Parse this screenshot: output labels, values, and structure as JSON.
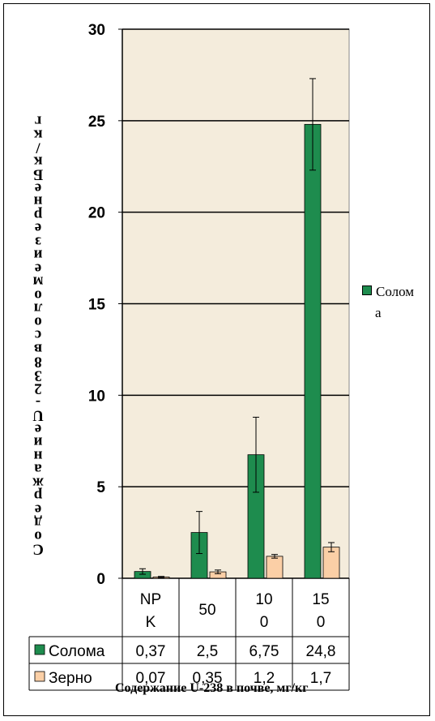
{
  "chart_data": {
    "type": "bar",
    "ylabel": "Содержание U-238 в зерне, мк/кг",
    "ylabel_letters": [
      "С",
      "о",
      "д",
      "е",
      "р",
      "ж",
      "а",
      "н",
      "и",
      "е",
      "U",
      "-",
      "2",
      "3",
      "8",
      "в",
      "с",
      "о",
      "л",
      "о",
      "м",
      "е",
      "и",
      "з",
      "е",
      "р",
      "н",
      "е",
      "Б",
      "к",
      "/",
      "к",
      "г"
    ],
    "xlabel": "Содержание U-238 в почве, мг/кг",
    "ylim": [
      0,
      30
    ],
    "yticks": [
      "0",
      "5",
      "10",
      "15",
      "20",
      "25",
      "30"
    ],
    "grid": true,
    "legend_position": "right",
    "categories": [
      {
        "line1": "NP",
        "line2": "K"
      },
      {
        "line1": "50",
        "line2": ""
      },
      {
        "line1": "10",
        "line2": "0"
      },
      {
        "line1": "15",
        "line2": "0"
      }
    ],
    "series": [
      {
        "name": "Солома",
        "legend_line1": "Солом",
        "legend_line2": "а",
        "color": "#1e8c4e",
        "values": [
          0.37,
          2.5,
          6.75,
          24.8
        ],
        "labels": [
          "0,37",
          "2,5",
          "6,75",
          "24,8"
        ],
        "error": [
          0.15,
          1.15,
          2.05,
          2.5
        ]
      },
      {
        "name": "Зерно",
        "color": "#fbcfa6",
        "values": [
          0.07,
          0.35,
          1.2,
          1.7
        ],
        "labels": [
          "0,07",
          "0,35",
          "1,2",
          "1,7"
        ],
        "error": [
          0.03,
          0.1,
          0.1,
          0.25
        ]
      }
    ],
    "plot_background": "#f4ecdc"
  }
}
